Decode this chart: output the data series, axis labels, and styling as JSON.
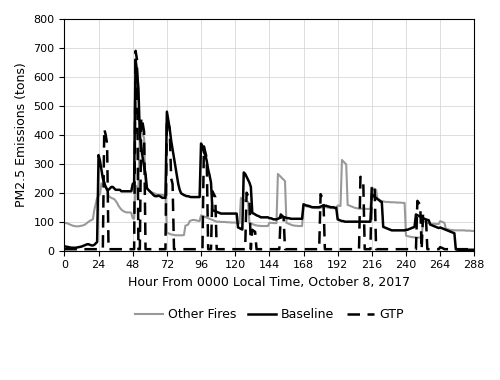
{
  "xlabel": "Hour From 0000 Local Time, October 8, 2017",
  "ylabel": "PM2.5 Emissions (tons)",
  "xlim": [
    0,
    288
  ],
  "ylim": [
    0,
    800
  ],
  "xticks": [
    0,
    24,
    48,
    72,
    96,
    120,
    144,
    168,
    192,
    216,
    240,
    264,
    288
  ],
  "yticks": [
    0,
    100,
    200,
    300,
    400,
    500,
    600,
    700,
    800
  ],
  "baseline_color": "#000000",
  "gtp_color": "#000000",
  "other_color": "#999999",
  "baseline_lw": 1.8,
  "gtp_lw": 1.8,
  "other_lw": 1.5,
  "baseline_y": [
    15,
    14,
    13,
    12,
    11,
    10,
    10,
    10,
    10,
    11,
    12,
    13,
    14,
    16,
    18,
    20,
    22,
    22,
    20,
    18,
    18,
    20,
    25,
    30,
    330,
    310,
    280,
    250,
    235,
    220,
    210,
    210,
    215,
    220,
    220,
    215,
    210,
    210,
    210,
    210,
    205,
    205,
    205,
    205,
    205,
    205,
    205,
    205,
    230,
    235,
    660,
    620,
    560,
    400,
    360,
    320,
    290,
    265,
    215,
    210,
    205,
    200,
    195,
    190,
    188,
    188,
    190,
    188,
    185,
    182,
    183,
    182,
    480,
    450,
    420,
    380,
    350,
    320,
    290,
    260,
    230,
    210,
    198,
    195,
    192,
    190,
    188,
    188,
    186,
    185,
    185,
    185,
    185,
    185,
    185,
    185,
    370,
    360,
    340,
    330,
    310,
    280,
    260,
    235,
    140,
    138,
    136,
    134,
    132,
    130,
    128,
    128,
    128,
    128,
    128,
    128,
    128,
    128,
    128,
    128,
    128,
    128,
    80,
    78,
    75,
    73,
    270,
    265,
    255,
    245,
    235,
    220,
    130,
    128,
    125,
    122,
    120,
    118,
    115,
    115,
    115,
    115,
    115,
    115,
    112,
    112,
    110,
    108,
    108,
    108,
    110,
    112,
    120,
    118,
    116,
    115,
    113,
    112,
    112,
    110,
    110,
    110,
    110,
    110,
    110,
    110,
    110,
    110,
    160,
    158,
    156,
    155,
    154,
    152,
    150,
    150,
    150,
    150,
    150,
    150,
    152,
    154,
    155,
    155,
    155,
    153,
    152,
    150,
    150,
    150,
    148,
    148,
    108,
    106,
    104,
    102,
    102,
    100,
    100,
    100,
    100,
    100,
    100,
    100,
    100,
    100,
    100,
    100,
    100,
    100,
    100,
    100,
    100,
    100,
    100,
    100,
    195,
    190,
    185,
    182,
    178,
    175,
    170,
    168,
    82,
    80,
    78,
    76,
    74,
    72,
    70,
    70,
    70,
    70,
    70,
    70,
    70,
    70,
    70,
    70,
    72,
    72,
    74,
    76,
    78,
    80,
    82,
    125,
    122,
    120,
    118,
    115,
    112,
    110,
    108,
    106,
    105,
    90,
    88,
    86,
    84,
    82,
    80,
    78,
    80,
    78,
    76,
    74,
    72,
    70,
    68,
    66,
    64,
    62,
    60,
    5,
    4,
    3,
    3,
    3,
    3,
    3,
    3,
    3,
    3,
    3,
    3,
    3
  ],
  "gtp_y": [
    5,
    5,
    5,
    5,
    5,
    5,
    5,
    5,
    5,
    5,
    5,
    5,
    5,
    5,
    5,
    5,
    5,
    5,
    5,
    5,
    5,
    5,
    5,
    5,
    5,
    5,
    5,
    5,
    420,
    400,
    370,
    5,
    5,
    5,
    5,
    5,
    5,
    5,
    5,
    5,
    5,
    5,
    5,
    5,
    5,
    5,
    5,
    5,
    5,
    5,
    690,
    660,
    5,
    5,
    460,
    440,
    410,
    5,
    5,
    5,
    5,
    5,
    5,
    5,
    5,
    5,
    5,
    5,
    5,
    5,
    5,
    5,
    460,
    440,
    420,
    250,
    230,
    5,
    5,
    5,
    5,
    5,
    5,
    5,
    5,
    5,
    5,
    5,
    5,
    5,
    5,
    5,
    5,
    5,
    5,
    5,
    5,
    5,
    360,
    340,
    320,
    5,
    5,
    5,
    205,
    195,
    185,
    5,
    5,
    5,
    5,
    5,
    5,
    5,
    5,
    5,
    5,
    5,
    5,
    5,
    5,
    5,
    5,
    5,
    5,
    5,
    5,
    5,
    200,
    190,
    180,
    5,
    72,
    68,
    65,
    5,
    5,
    5,
    5,
    5,
    5,
    5,
    5,
    5,
    5,
    5,
    5,
    5,
    5,
    5,
    5,
    5,
    125,
    120,
    115,
    5,
    5,
    5,
    5,
    5,
    5,
    5,
    5,
    5,
    5,
    5,
    5,
    5,
    5,
    5,
    5,
    5,
    5,
    5,
    5,
    5,
    5,
    5,
    5,
    5,
    195,
    185,
    175,
    5,
    5,
    5,
    5,
    5,
    5,
    5,
    5,
    5,
    5,
    5,
    5,
    5,
    5,
    5,
    5,
    5,
    5,
    5,
    5,
    5,
    5,
    5,
    5,
    5,
    255,
    245,
    235,
    5,
    5,
    5,
    5,
    5,
    228,
    220,
    210,
    5,
    5,
    5,
    5,
    5,
    5,
    5,
    5,
    5,
    5,
    5,
    5,
    5,
    5,
    5,
    5,
    5,
    5,
    5,
    5,
    5,
    5,
    5,
    5,
    5,
    5,
    5,
    5,
    5,
    172,
    165,
    158,
    5,
    128,
    122,
    116,
    5,
    5,
    5,
    5,
    5,
    5,
    5,
    5,
    5,
    12,
    10,
    8,
    5,
    5,
    5,
    5,
    5,
    5,
    5,
    5,
    5,
    5,
    5,
    5,
    5,
    5,
    5,
    5,
    5,
    5,
    5,
    5,
    5
  ],
  "other_y": [
    95,
    95,
    95,
    92,
    90,
    88,
    86,
    85,
    84,
    84,
    84,
    85,
    86,
    87,
    89,
    92,
    96,
    100,
    103,
    106,
    108,
    140,
    162,
    182,
    188,
    195,
    232,
    228,
    224,
    220,
    215,
    190,
    185,
    182,
    180,
    178,
    172,
    165,
    155,
    148,
    142,
    138,
    135,
    133,
    132,
    132,
    132,
    130,
    112,
    110,
    225,
    220,
    215,
    420,
    410,
    400,
    390,
    220,
    215,
    210,
    205,
    202,
    200,
    198,
    196,
    194,
    193,
    193,
    193,
    192,
    192,
    192,
    62,
    60,
    58,
    56,
    55,
    54,
    53,
    53,
    53,
    53,
    53,
    53,
    54,
    86,
    88,
    90,
    102,
    104,
    106,
    106,
    105,
    104,
    103,
    102,
    122,
    120,
    118,
    116,
    114,
    112,
    110,
    108,
    106,
    104,
    102,
    100,
    100,
    100,
    99,
    99,
    99,
    99,
    98,
    98,
    98,
    97,
    97,
    97,
    97,
    96,
    95,
    94,
    182,
    178,
    175,
    172,
    170,
    168,
    96,
    94,
    92,
    90,
    88,
    87,
    86,
    86,
    85,
    85,
    85,
    85,
    85,
    85,
    96,
    96,
    96,
    95,
    95,
    95,
    265,
    260,
    255,
    250,
    245,
    240,
    96,
    94,
    92,
    90,
    88,
    87,
    86,
    86,
    85,
    85,
    85,
    85,
    157,
    155,
    153,
    152,
    151,
    150,
    149,
    148,
    147,
    147,
    147,
    147,
    148,
    149,
    150,
    150,
    150,
    149,
    148,
    147,
    147,
    146,
    146,
    146,
    156,
    155,
    154,
    313,
    308,
    303,
    298,
    158,
    156,
    154,
    152,
    150,
    148,
    147,
    146,
    145,
    145,
    145,
    145,
    145,
    144,
    144,
    144,
    144,
    218,
    215,
    212,
    210,
    178,
    175,
    173,
    171,
    170,
    169,
    168,
    168,
    168,
    167,
    167,
    167,
    167,
    166,
    166,
    166,
    166,
    165,
    165,
    165,
    52,
    50,
    49,
    48,
    47,
    46,
    46,
    45,
    45,
    45,
    45,
    45,
    102,
    100,
    98,
    96,
    95,
    94,
    93,
    93,
    93,
    92,
    92,
    92,
    102,
    100,
    98,
    96,
    76,
    74,
    73,
    72,
    71,
    71,
    70,
    70,
    70,
    70,
    70,
    70,
    70,
    70,
    69,
    69,
    69,
    69,
    68,
    68
  ]
}
